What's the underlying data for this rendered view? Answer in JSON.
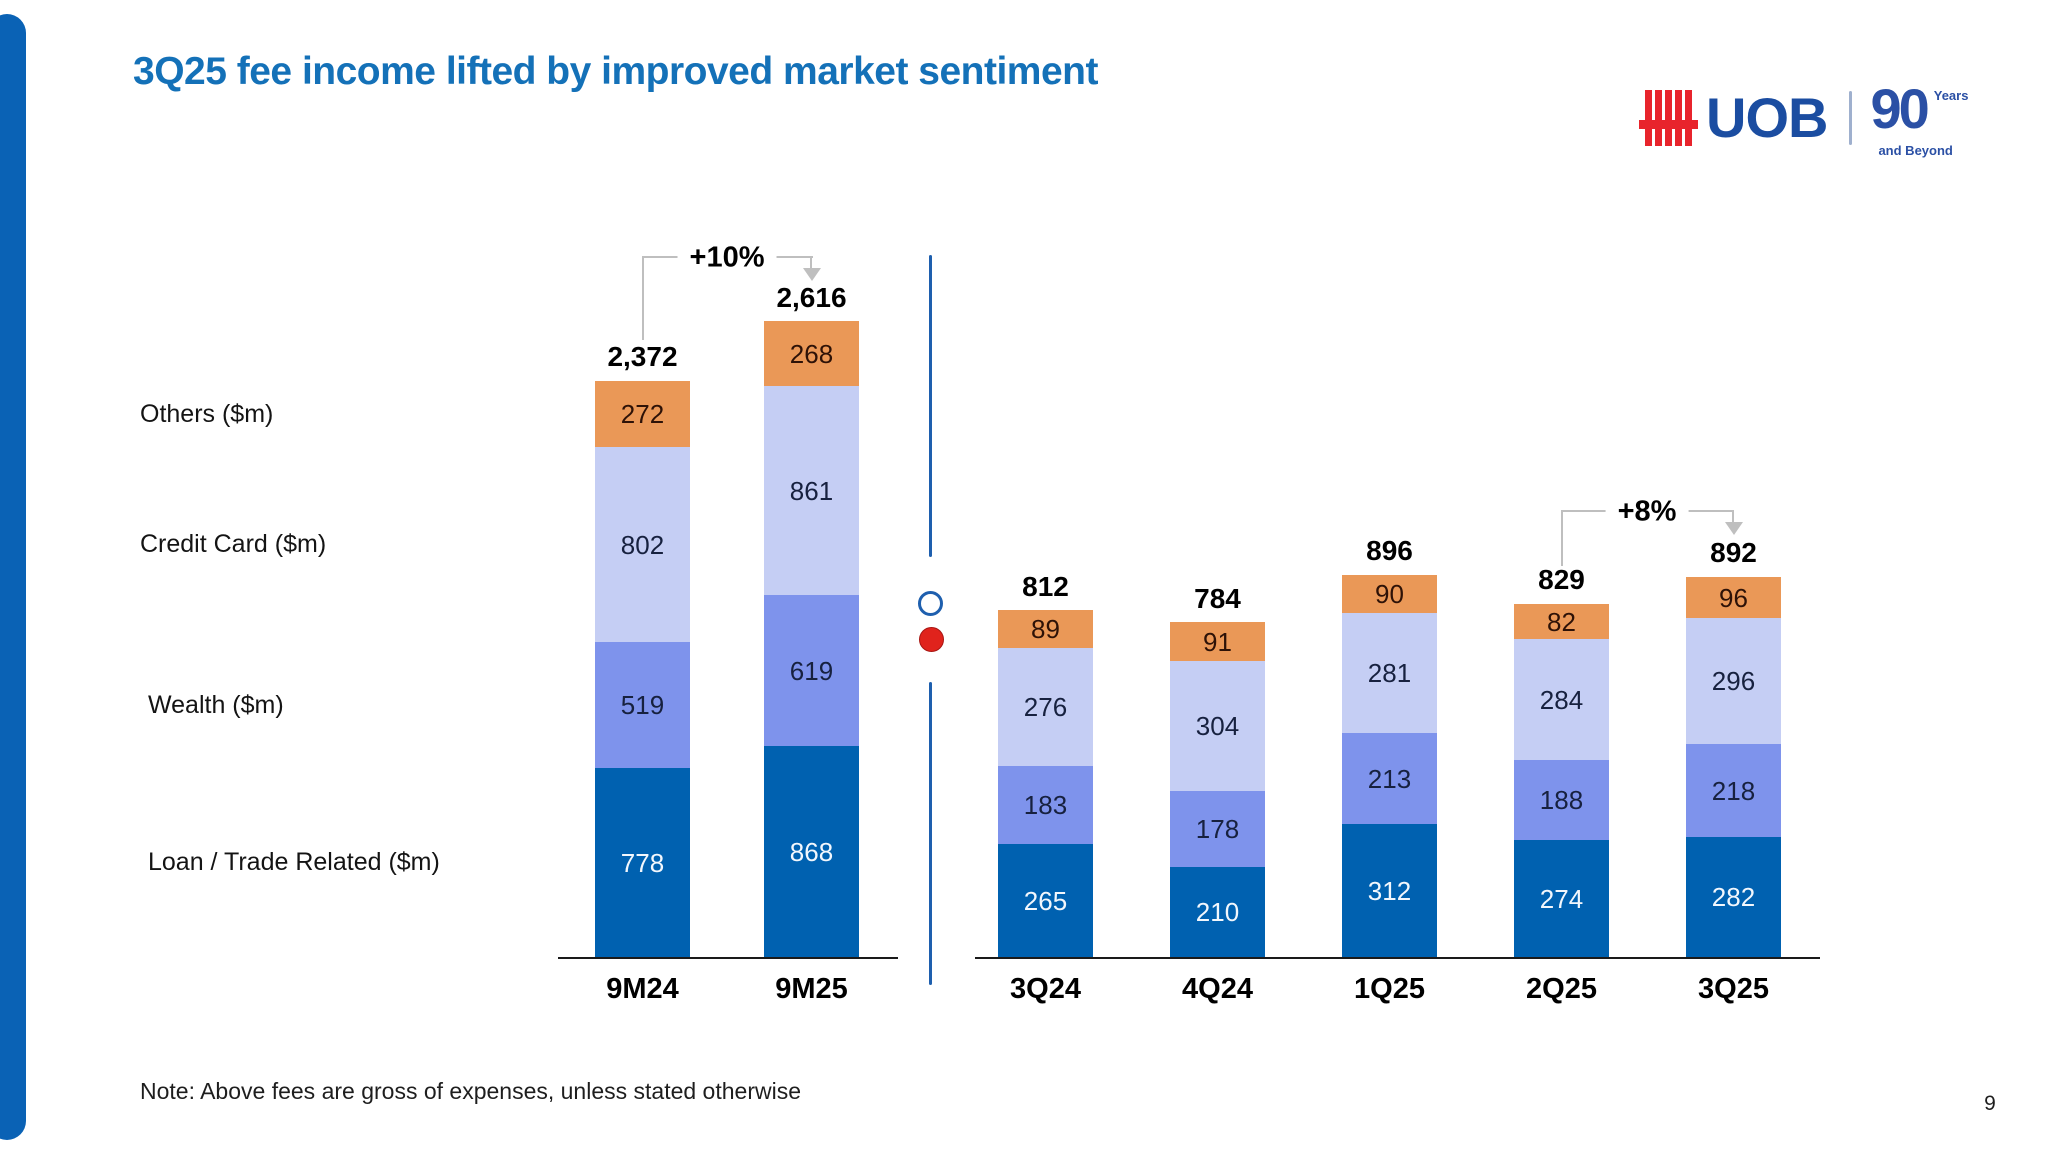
{
  "slide": {
    "title": "3Q25 fee income lifted by improved market sentiment",
    "note": "Note: Above fees are gross of expenses, unless stated otherwise",
    "page_number": "9"
  },
  "logo": {
    "brand": "UOB",
    "badge_number": "90",
    "badge_years": "Years",
    "badge_beyond": "and Beyond"
  },
  "chart_data": {
    "type": "bar",
    "stacked": true,
    "unit": "$m",
    "row_labels": [
      "Others ($m)",
      "Credit Card ($m)",
      "Wealth ($m)",
      "Loan / Trade Related ($m)"
    ],
    "segment_order_bottom_to_top": [
      "Loan / Trade Related ($m)",
      "Wealth ($m)",
      "Credit Card ($m)",
      "Others ($m)"
    ],
    "groups": [
      {
        "name": "nine-month",
        "categories": [
          "9M24",
          "9M25"
        ],
        "totals": [
          "2,372",
          "2,616"
        ],
        "series": [
          {
            "name": "Loan / Trade Related ($m)",
            "values": [
              778,
              868
            ]
          },
          {
            "name": "Wealth ($m)",
            "values": [
              519,
              619
            ]
          },
          {
            "name": "Credit Card ($m)",
            "values": [
              802,
              861
            ]
          },
          {
            "name": "Others ($m)",
            "values": [
              272,
              268
            ]
          }
        ],
        "annotation": {
          "label": "+10%",
          "from": "9M24",
          "to": "9M25"
        }
      },
      {
        "name": "quarterly",
        "categories": [
          "3Q24",
          "4Q24",
          "1Q25",
          "2Q25",
          "3Q25"
        ],
        "totals": [
          "812",
          "784",
          "896",
          "829",
          "892"
        ],
        "series": [
          {
            "name": "Loan / Trade Related ($m)",
            "values": [
              265,
              210,
              312,
              274,
              282
            ]
          },
          {
            "name": "Wealth ($m)",
            "values": [
              183,
              178,
              213,
              188,
              218
            ]
          },
          {
            "name": "Credit Card ($m)",
            "values": [
              276,
              304,
              281,
              284,
              296
            ]
          },
          {
            "name": "Others ($m)",
            "values": [
              89,
              91,
              90,
              82,
              96
            ]
          }
        ],
        "annotation": {
          "label": "+8%",
          "from": "2Q25",
          "to": "3Q25"
        }
      }
    ],
    "colors": {
      "loan_trade": "#0061B0",
      "wealth": "#7E93EC",
      "credit_card": "#C5CEF4",
      "others": "#EA9857",
      "title_blue": "#1471B8",
      "divider_blue": "#1E5FAE",
      "marker_red": "#E0231C",
      "bracket_gray": "#BFBFBF"
    }
  }
}
